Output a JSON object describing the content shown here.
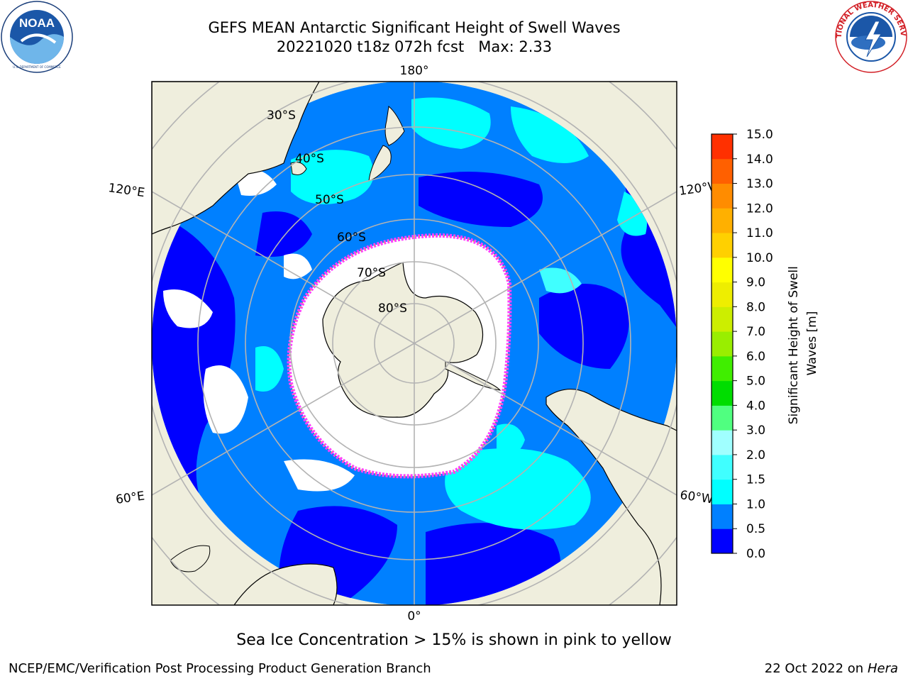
{
  "title": {
    "line1": "GEFS MEAN Antarctic Significant Height of Swell Waves",
    "line2": "20221020 t18z 072h fcst   Max: 2.33"
  },
  "logos": {
    "left": {
      "name": "noaa-logo",
      "text": "NOAA",
      "ring_text": "NATIONAL OCEANIC AND ATMOSPHERIC ADMINISTRATION · U.S. DEPARTMENT OF COMMERCE"
    },
    "right": {
      "name": "national-weather-service-logo",
      "ring_text": "NATIONAL WEATHER SERVICE"
    }
  },
  "map": {
    "projection": "south-polar-stereographic",
    "longitude_labels": {
      "top": "180°",
      "bottom": "0°",
      "upper_left": "120°E",
      "upper_right": "120°W",
      "lower_left": "60°E",
      "lower_right": "60°W"
    },
    "latitude_labels": [
      "30°S",
      "40°S",
      "50°S",
      "60°S",
      "70°S",
      "80°S"
    ],
    "colors": {
      "land": "#efeedd",
      "ocean_low": "#0000ff",
      "ocean_mid": "#0080ff",
      "ocean_high": "#00ffff",
      "graticule": "#b3b3b3",
      "ice_edge": "#ff40ff",
      "ice_low": "#ffb000"
    }
  },
  "colorbar": {
    "label_line1": "Significant Height of Swell",
    "label_line2": "Waves [m]",
    "ticks": [
      "0.0",
      "0.5",
      "1.0",
      "1.5",
      "2.0",
      "3.0",
      "4.0",
      "5.0",
      "6.0",
      "7.0",
      "8.0",
      "9.0",
      "10.0",
      "11.0",
      "12.0",
      "13.0",
      "14.0",
      "15.0"
    ],
    "colors": [
      "#0000ff",
      "#0080ff",
      "#00ffff",
      "#40ffff",
      "#a0ffff",
      "#50ff80",
      "#00dd00",
      "#40ee00",
      "#99ee00",
      "#ccee00",
      "#eeee00",
      "#ffff00",
      "#ffd000",
      "#ffb000",
      "#ff8c00",
      "#ff6000",
      "#ff3000",
      "#ff0000"
    ]
  },
  "footer": {
    "ice_note": "Sea Ice Concentration > 15% is shown in pink to yellow",
    "credit": "NCEP/EMC/Verification Post Processing Product Generation Branch",
    "date": "22 Oct 2022 on",
    "host": "Hera"
  }
}
